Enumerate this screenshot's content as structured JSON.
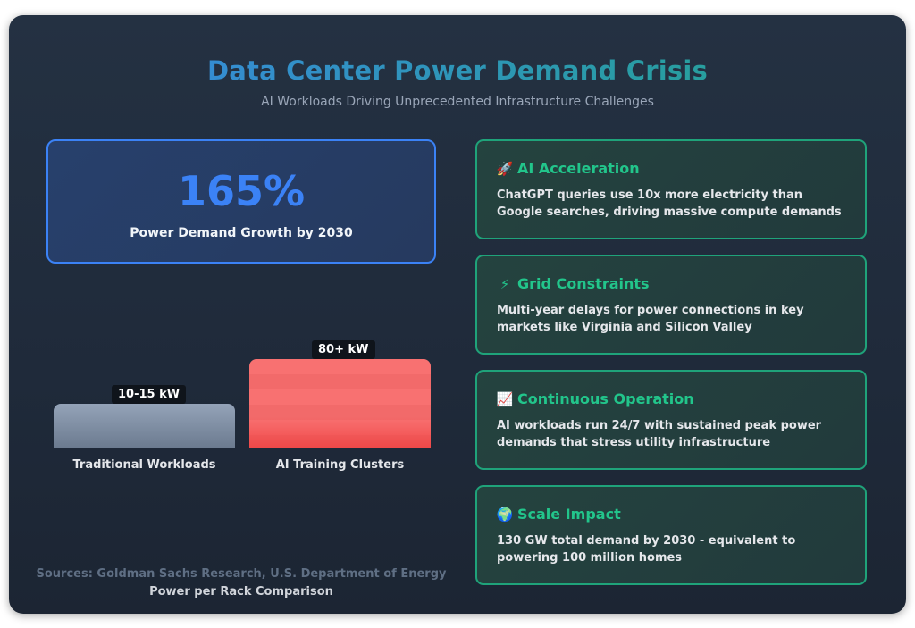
{
  "header": {
    "title": "Data Center Power Demand Crisis",
    "subtitle": "AI Workloads Driving Unprecedented Infrastructure Challenges"
  },
  "stat": {
    "value": "165%",
    "label": "Power Demand Growth by 2030"
  },
  "chart_data": {
    "type": "bar",
    "title": "Power per Rack Comparison",
    "categories": [
      "Traditional Workloads",
      "AI Training Clusters"
    ],
    "values": [
      12.5,
      80
    ],
    "value_labels": [
      "10-15 kW",
      "80+ kW"
    ],
    "unit": "kW",
    "colors": [
      "#94a3b8",
      "#f87171"
    ]
  },
  "footer": {
    "sources": "Sources: Goldman Sachs Research, U.S. Department of Energy"
  },
  "cards": [
    {
      "icon": "rocket-icon",
      "glyph": "🚀",
      "title": "AI Acceleration",
      "body": "ChatGPT queries use 10x more electricity than Google searches, driving massive compute demands"
    },
    {
      "icon": "lightning-icon",
      "glyph": "⚡",
      "title": "Grid Constraints",
      "body": "Multi-year delays for power connections in key markets like Virginia and Silicon Valley"
    },
    {
      "icon": "chart-increasing-icon",
      "glyph": "📈",
      "title": "Continuous Operation",
      "body": "AI workloads run 24/7 with sustained peak power demands that stress utility infrastructure"
    },
    {
      "icon": "globe-icon",
      "glyph": "🌍",
      "title": "Scale Impact",
      "body": "130 GW total demand by 2030 - equivalent to powering 100 million homes"
    }
  ],
  "colors": {
    "accent_blue": "#3b82f6",
    "accent_green": "#22c58b",
    "bar_traditional": "#94a3b8",
    "bar_ai": "#f87171"
  }
}
